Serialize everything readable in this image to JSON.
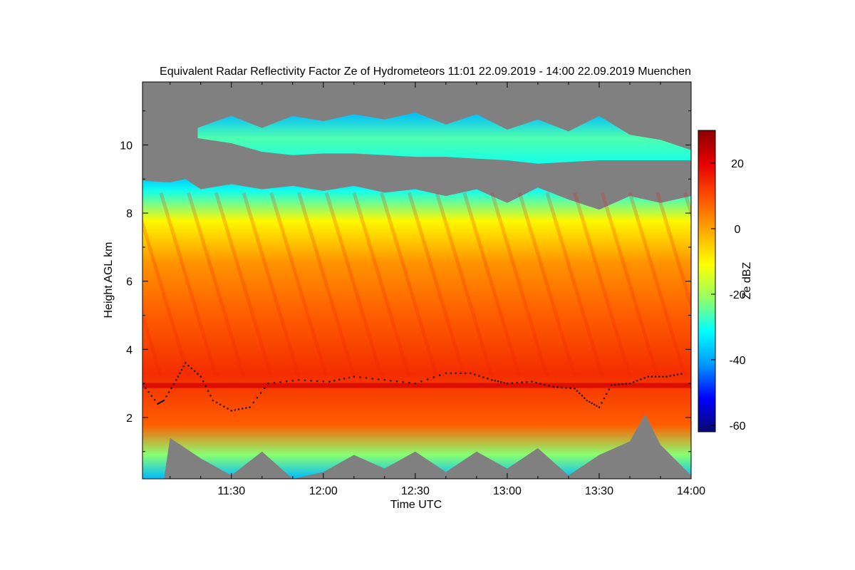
{
  "chart_data": {
    "type": "heatmap",
    "title": "Equivalent Radar Reflectivity Factor Ze of Hydrometeors   11:01 22.09.2019 - 14:00 22.09.2019 Muenchen",
    "xlabel": "Time UTC",
    "ylabel": "Height AGL km",
    "x_range_min": [
      661,
      840
    ],
    "y_range_km": [
      0.2,
      11.85
    ],
    "x_ticks": [
      {
        "label": "11:30",
        "minutes": 690
      },
      {
        "label": "12:00",
        "minutes": 720
      },
      {
        "label": "12:30",
        "minutes": 750
      },
      {
        "label": "13:00",
        "minutes": 780
      },
      {
        "label": "13:30",
        "minutes": 810
      },
      {
        "label": "14:00",
        "minutes": 840
      }
    ],
    "y_ticks": [
      {
        "label": "2",
        "value": 2
      },
      {
        "label": "4",
        "value": 4
      },
      {
        "label": "6",
        "value": 6
      },
      {
        "label": "8",
        "value": 8
      },
      {
        "label": "10",
        "value": 10
      }
    ],
    "colorbar": {
      "label": "Ze dBZ",
      "range": [
        -62,
        30
      ],
      "ticks": [
        {
          "label": "20",
          "value": 20
        },
        {
          "label": "0",
          "value": 0
        },
        {
          "label": "-20",
          "value": -20
        },
        {
          "label": "-40",
          "value": -40
        },
        {
          "label": "-60",
          "value": -60
        }
      ],
      "colors": [
        "#0a0a6e",
        "#0000ff",
        "#0096ff",
        "#00ffff",
        "#96ff64",
        "#ffff00",
        "#ffaa00",
        "#ff5000",
        "#e60000",
        "#8b0000"
      ]
    },
    "no_signal_color": "#808080",
    "layers": [
      {
        "name": "cirrus layer",
        "base_km": 9.55,
        "top_km": 10.95,
        "start_min": 679,
        "end_min": 840,
        "ze_dbz": -33
      },
      {
        "name": "main precipitating cloud",
        "base_km": 0.2,
        "top_km": 9.0,
        "start_min": 661,
        "end_min": 840,
        "ze_dbz": 5
      },
      {
        "name": "melting layer bright band",
        "height_km": 2.95,
        "ze_dbz": 22
      }
    ],
    "cloud_top_km": [
      [
        661,
        8.95
      ],
      [
        670,
        8.9
      ],
      [
        675,
        9.0
      ],
      [
        680,
        8.7
      ],
      [
        690,
        8.85
      ],
      [
        700,
        8.7
      ],
      [
        710,
        8.8
      ],
      [
        720,
        8.65
      ],
      [
        730,
        8.8
      ],
      [
        740,
        8.6
      ],
      [
        750,
        8.7
      ],
      [
        760,
        8.5
      ],
      [
        770,
        8.7
      ],
      [
        780,
        8.3
      ],
      [
        790,
        8.75
      ],
      [
        800,
        8.4
      ],
      [
        810,
        8.1
      ],
      [
        820,
        8.5
      ],
      [
        830,
        8.3
      ],
      [
        840,
        8.5
      ]
    ],
    "cirrus_base_km": [
      [
        679,
        10.2
      ],
      [
        690,
        10.05
      ],
      [
        700,
        9.8
      ],
      [
        710,
        9.7
      ],
      [
        720,
        9.75
      ],
      [
        730,
        9.75
      ],
      [
        740,
        9.7
      ],
      [
        750,
        9.65
      ],
      [
        760,
        9.65
      ],
      [
        770,
        9.6
      ],
      [
        780,
        9.55
      ],
      [
        790,
        9.45
      ],
      [
        800,
        9.5
      ],
      [
        810,
        9.55
      ],
      [
        820,
        9.55
      ],
      [
        830,
        9.55
      ],
      [
        840,
        9.55
      ]
    ],
    "cirrus_top_km": [
      [
        679,
        10.5
      ],
      [
        685,
        10.7
      ],
      [
        690,
        10.85
      ],
      [
        700,
        10.5
      ],
      [
        710,
        10.85
      ],
      [
        720,
        10.7
      ],
      [
        730,
        10.9
      ],
      [
        740,
        10.75
      ],
      [
        750,
        10.95
      ],
      [
        760,
        10.6
      ],
      [
        770,
        10.9
      ],
      [
        780,
        10.45
      ],
      [
        790,
        10.75
      ],
      [
        800,
        10.4
      ],
      [
        810,
        10.85
      ],
      [
        820,
        10.3
      ],
      [
        830,
        10.15
      ],
      [
        840,
        9.85
      ]
    ],
    "echo_base_km": [
      [
        661,
        0.2
      ],
      [
        668,
        0.2
      ],
      [
        670,
        1.4
      ],
      [
        680,
        0.8
      ],
      [
        690,
        0.3
      ],
      [
        700,
        1.0
      ],
      [
        710,
        0.2
      ],
      [
        720,
        0.4
      ],
      [
        730,
        0.9
      ],
      [
        740,
        0.5
      ],
      [
        750,
        1.0
      ],
      [
        760,
        0.4
      ],
      [
        770,
        1.0
      ],
      [
        780,
        0.5
      ],
      [
        790,
        1.1
      ],
      [
        800,
        0.3
      ],
      [
        810,
        0.9
      ],
      [
        820,
        1.3
      ],
      [
        825,
        2.1
      ],
      [
        830,
        1.2
      ],
      [
        840,
        0.3
      ]
    ],
    "bright_band_height_km": [
      [
        661,
        2.98
      ],
      [
        666,
        2.4
      ],
      [
        668,
        2.5
      ],
      [
        672,
        3.1
      ],
      [
        675,
        3.6
      ],
      [
        680,
        3.2
      ],
      [
        684,
        2.5
      ],
      [
        690,
        2.2
      ],
      [
        696,
        2.3
      ],
      [
        702,
        3.0
      ],
      [
        712,
        3.1
      ],
      [
        722,
        3.05
      ],
      [
        730,
        3.2
      ],
      [
        740,
        3.1
      ],
      [
        750,
        3.0
      ],
      [
        760,
        3.3
      ],
      [
        768,
        3.3
      ],
      [
        775,
        3.1
      ],
      [
        780,
        3.0
      ],
      [
        788,
        3.05
      ],
      [
        795,
        2.9
      ],
      [
        802,
        2.85
      ],
      [
        806,
        2.5
      ],
      [
        810,
        2.3
      ],
      [
        814,
        2.95
      ],
      [
        820,
        3.0
      ],
      [
        826,
        3.2
      ],
      [
        832,
        3.2
      ],
      [
        838,
        3.3
      ]
    ]
  }
}
